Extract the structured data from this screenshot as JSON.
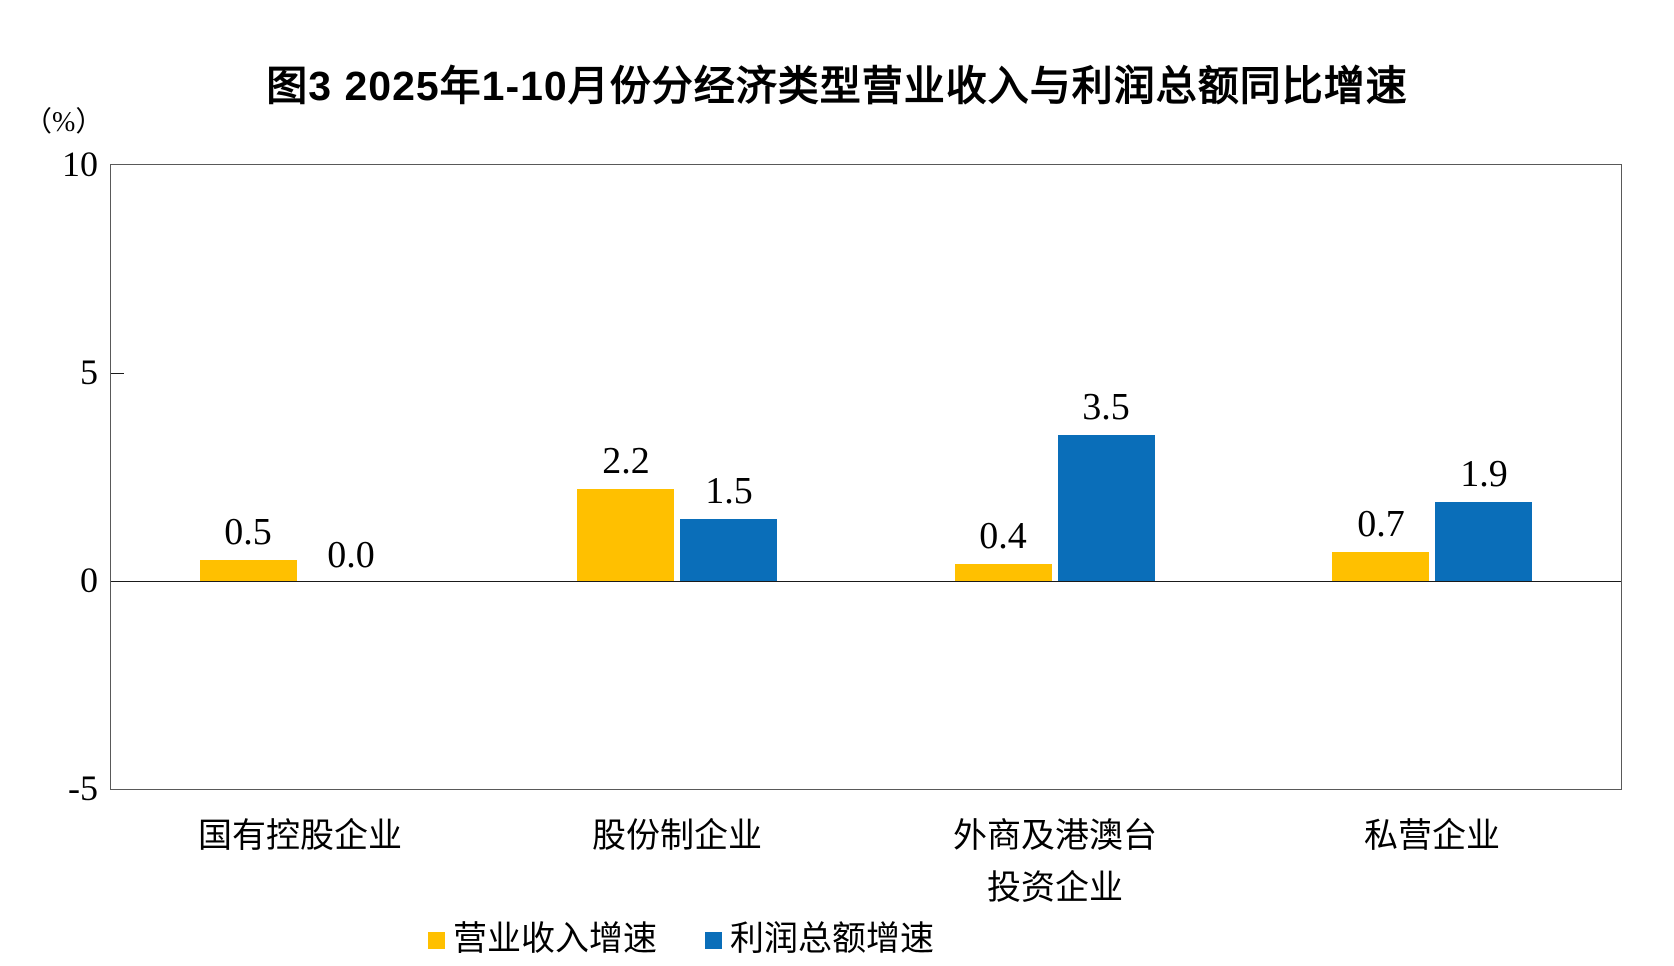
{
  "title": "图3 2025年1-10月份分经济类型营业收入与利润总额同比增速",
  "y_axis": {
    "unit_label": "（%）",
    "ticks": {
      "t10": "10",
      "t5": "5",
      "t0": "0",
      "tm5": "-5"
    }
  },
  "legend": [
    {
      "label": "营业收入增速",
      "color": "#FFC000"
    },
    {
      "label": "利润总额增速",
      "color": "#0A6EB9"
    }
  ],
  "chart_data": {
    "type": "bar",
    "title": "图3 2025年1-10月份分经济类型营业收入与利润总额同比增速",
    "ylabel": "（%）",
    "ylim": [
      -5,
      10
    ],
    "yticks": [
      10,
      5,
      0,
      -5
    ],
    "grid": false,
    "legend_position": "bottom",
    "categories": [
      "国有控股企业",
      "股份制企业",
      "外商及港澳台投资企业",
      "私营企业"
    ],
    "category_lines": [
      [
        "国有控股企业"
      ],
      [
        "股份制企业"
      ],
      [
        "外商及港澳台",
        "投资企业"
      ],
      [
        "私营企业"
      ]
    ],
    "series": [
      {
        "name": "营业收入增速",
        "color": "#FFC000",
        "values": [
          0.5,
          2.2,
          0.4,
          0.7
        ]
      },
      {
        "name": "利润总额增速",
        "color": "#0A6EB9",
        "values": [
          0.0,
          1.5,
          3.5,
          1.9
        ]
      }
    ]
  }
}
